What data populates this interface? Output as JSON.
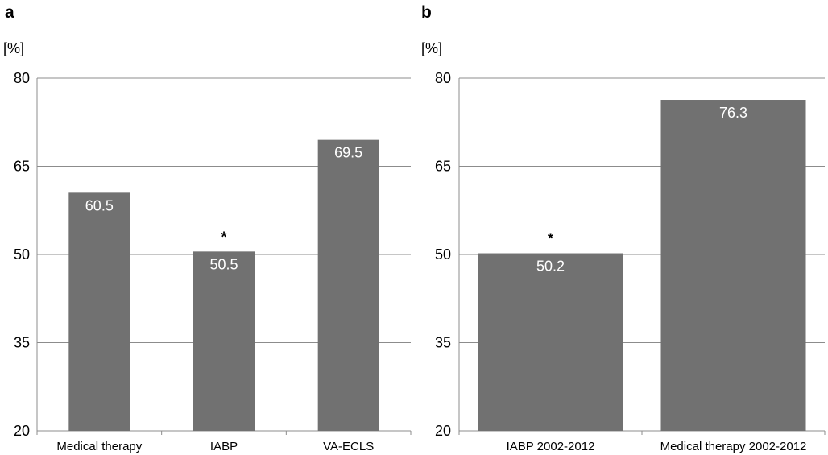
{
  "chart_data": [
    {
      "type": "bar",
      "panel_label": "a",
      "unit_label": "[%]",
      "title": "",
      "xlabel": "",
      "ylabel": "",
      "categories": [
        "Medical therapy",
        "IABP",
        "VA-ECLS"
      ],
      "values": [
        60.5,
        50.5,
        69.5
      ],
      "data_labels": [
        "60.5",
        "50.5",
        "69.5"
      ],
      "annotations": [
        "",
        "*",
        ""
      ],
      "ylim": [
        20,
        80
      ],
      "yticks": [
        20,
        35,
        50,
        65,
        80
      ],
      "grid": true,
      "legend": "none",
      "bar_color": "#717171"
    },
    {
      "type": "bar",
      "panel_label": "b",
      "unit_label": "[%]",
      "title": "",
      "xlabel": "",
      "ylabel": "",
      "categories": [
        "IABP 2002-2012",
        "Medical therapy 2002-2012"
      ],
      "values": [
        50.2,
        76.3
      ],
      "data_labels": [
        "50.2",
        "76.3"
      ],
      "annotations": [
        "*",
        ""
      ],
      "ylim": [
        20,
        80
      ],
      "yticks": [
        20,
        35,
        50,
        65,
        80
      ],
      "grid": true,
      "legend": "none",
      "bar_color": "#717171"
    }
  ]
}
